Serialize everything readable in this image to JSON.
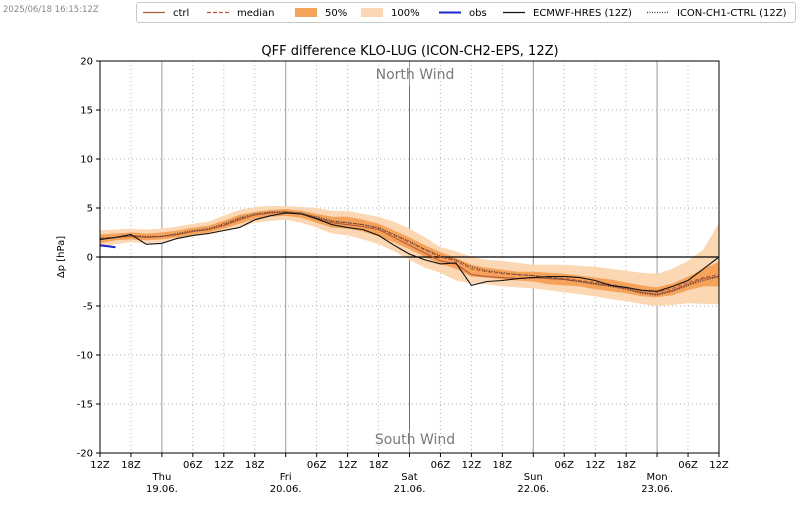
{
  "timestamp": "2025/06/18 16:15:12Z",
  "legend": [
    {
      "label": "ctrl",
      "kind": "line",
      "color": "#b15a3c",
      "dash": ""
    },
    {
      "label": "median",
      "kind": "line",
      "color": "#b15a3c",
      "dash": "4,2"
    },
    {
      "label": "50%",
      "kind": "band",
      "color": "#f5a25a"
    },
    {
      "label": "100%",
      "kind": "band",
      "color": "#fbd7b3"
    },
    {
      "label": "obs",
      "kind": "line",
      "color": "#1a25c8",
      "dash": "",
      "width": 2
    },
    {
      "label": "ECMWF-HRES (12Z)",
      "kind": "line",
      "color": "#111111",
      "dash": ""
    },
    {
      "label": "ICON-CH1-CTRL (12Z)",
      "kind": "line",
      "color": "#333333",
      "dash": "1,1.5"
    }
  ],
  "chart_data": {
    "type": "line",
    "title": "QFF difference KLO-LUG (ICON-CH2-EPS, 12Z)",
    "ylabel": "Δp [hPa]",
    "ylim": [
      -20,
      20
    ],
    "yticks": [
      -20,
      -15,
      -10,
      -5,
      0,
      5,
      10,
      15,
      20
    ],
    "xlim_hours": [
      0,
      120
    ],
    "annotations": {
      "top": "North Wind",
      "bottom": "South Wind"
    },
    "x_tick_labels": [
      {
        "h": 0,
        "label": "12Z"
      },
      {
        "h": 6,
        "label": "18Z"
      },
      {
        "h": 18,
        "label": "06Z"
      },
      {
        "h": 24,
        "label": "12Z"
      },
      {
        "h": 30,
        "label": "18Z"
      },
      {
        "h": 42,
        "label": "06Z"
      },
      {
        "h": 48,
        "label": "12Z"
      },
      {
        "h": 54,
        "label": "18Z"
      },
      {
        "h": 66,
        "label": "06Z"
      },
      {
        "h": 72,
        "label": "12Z"
      },
      {
        "h": 78,
        "label": "18Z"
      },
      {
        "h": 90,
        "label": "06Z"
      },
      {
        "h": 96,
        "label": "12Z"
      },
      {
        "h": 102,
        "label": "18Z"
      },
      {
        "h": 114,
        "label": "06Z"
      },
      {
        "h": 120,
        "label": "12Z"
      }
    ],
    "day_labels": [
      {
        "h": 12,
        "day": "Thu",
        "date": "19.06."
      },
      {
        "h": 36,
        "day": "Fri",
        "date": "20.06."
      },
      {
        "h": 60,
        "day": "Sat",
        "date": "21.06."
      },
      {
        "h": 84,
        "day": "Sun",
        "date": "22.06."
      },
      {
        "h": 108,
        "day": "Mon",
        "date": "23.06."
      }
    ],
    "x_hours": [
      0,
      3,
      6,
      9,
      12,
      15,
      18,
      21,
      24,
      27,
      30,
      33,
      36,
      39,
      42,
      45,
      48,
      51,
      54,
      57,
      60,
      63,
      66,
      69,
      72,
      75,
      78,
      81,
      84,
      87,
      90,
      93,
      96,
      99,
      102,
      105,
      108,
      111,
      114,
      117,
      120
    ],
    "series": [
      {
        "name": "ctrl",
        "y": [
          1.8,
          2.0,
          2.1,
          2.0,
          2.1,
          2.3,
          2.6,
          2.8,
          3.2,
          3.8,
          4.3,
          4.5,
          4.6,
          4.5,
          4.0,
          3.5,
          3.3,
          3.1,
          2.8,
          2.0,
          1.2,
          0.4,
          -0.4,
          -0.7,
          -1.8,
          -2.0,
          -2.1,
          -2.2,
          -2.1,
          -2.2,
          -2.3,
          -2.5,
          -2.7,
          -2.9,
          -3.2,
          -3.6,
          -3.8,
          -3.4,
          -2.8,
          -2.2,
          -2.0
        ]
      },
      {
        "name": "median",
        "y": [
          1.9,
          2.0,
          2.2,
          2.0,
          2.1,
          2.3,
          2.6,
          2.8,
          3.3,
          3.9,
          4.3,
          4.5,
          4.6,
          4.4,
          4.0,
          3.6,
          3.5,
          3.3,
          2.9,
          2.2,
          1.5,
          0.7,
          0.0,
          -0.4,
          -1.2,
          -1.5,
          -1.7,
          -1.8,
          -1.9,
          -2.1,
          -2.2,
          -2.4,
          -2.6,
          -2.8,
          -3.1,
          -3.4,
          -3.6,
          -3.2,
          -2.6,
          -2.1,
          -1.8
        ]
      },
      {
        "name": "obs",
        "y": [
          1.2,
          1.0,
          null,
          null,
          null,
          null,
          null,
          null,
          null,
          null,
          null,
          null,
          null,
          null,
          null,
          null,
          null,
          null,
          null,
          null,
          null,
          null,
          null,
          null,
          null,
          null,
          null,
          null,
          null,
          null,
          null,
          null,
          null,
          null,
          null,
          null,
          null,
          null,
          null,
          null,
          null
        ]
      },
      {
        "name": "ECMWF-HRES (12Z)",
        "y": [
          1.8,
          2.0,
          2.3,
          1.3,
          1.4,
          1.9,
          2.2,
          2.4,
          2.7,
          3.0,
          3.8,
          4.2,
          4.5,
          4.4,
          3.9,
          3.3,
          3.0,
          2.8,
          2.2,
          1.2,
          0.3,
          -0.3,
          -0.7,
          -0.6,
          -2.9,
          -2.5,
          -2.4,
          -2.2,
          -2.1,
          -2.0,
          -2.0,
          -2.1,
          -2.4,
          -2.9,
          -3.1,
          -3.4,
          -3.5,
          -3.0,
          -2.4,
          -1.2,
          0.0
        ]
      },
      {
        "name": "ICON-CH1-CTRL (12Z)",
        "y": [
          1.9,
          2.0,
          2.2,
          2.1,
          2.1,
          2.4,
          2.7,
          2.9,
          3.4,
          4.0,
          4.4,
          4.6,
          4.6,
          4.4,
          4.1,
          3.7,
          3.5,
          3.3,
          3.0,
          2.3,
          1.6,
          0.8,
          0.1,
          -0.3,
          -1.0,
          -1.4,
          -1.6,
          -1.8,
          -1.9,
          -2.1,
          -2.3,
          -2.5,
          -2.8,
          -3.0,
          -3.3,
          -3.7,
          -3.9,
          -3.5,
          -2.9,
          -2.4,
          -2.0
        ]
      }
    ],
    "band_50": {
      "low": [
        1.4,
        1.7,
        1.8,
        1.7,
        1.8,
        2.0,
        2.3,
        2.5,
        2.9,
        3.4,
        3.9,
        4.1,
        4.2,
        4.0,
        3.5,
        3.0,
        2.9,
        2.6,
        2.1,
        1.5,
        0.8,
        0.0,
        -0.7,
        -1.2,
        -2.0,
        -2.1,
        -2.3,
        -2.4,
        -2.5,
        -2.8,
        -2.9,
        -3.0,
        -3.3,
        -3.5,
        -3.7,
        -4.0,
        -4.1,
        -3.9,
        -3.4,
        -3.0,
        -3.0
      ]
    },
    "band_50_high": [
      2.3,
      2.4,
      2.5,
      2.4,
      2.5,
      2.7,
      3.0,
      3.2,
      3.7,
      4.3,
      4.6,
      4.8,
      4.9,
      4.7,
      4.4,
      4.1,
      4.1,
      3.8,
      3.4,
      2.7,
      2.0,
      1.2,
      0.5,
      -0.1,
      -0.8,
      -1.1,
      -1.3,
      -1.5,
      -1.5,
      -1.6,
      -1.7,
      -1.9,
      -2.1,
      -2.3,
      -2.6,
      -2.9,
      -3.1,
      -2.7,
      -2.0,
      -1.2,
      -0.5
    ],
    "band_100_low": [
      1.0,
      1.3,
      1.5,
      1.4,
      1.5,
      1.8,
      2.1,
      2.3,
      2.6,
      3.0,
      3.5,
      3.7,
      3.8,
      3.5,
      3.0,
      2.4,
      2.2,
      1.8,
      1.3,
      0.6,
      -0.3,
      -1.1,
      -1.6,
      -2.4,
      -2.7,
      -2.8,
      -3.0,
      -3.1,
      -3.2,
      -3.4,
      -3.6,
      -3.8,
      -4.0,
      -4.3,
      -4.5,
      -4.8,
      -5.0,
      -4.9,
      -4.7,
      -4.8,
      -4.8
    ],
    "band_100_high": [
      2.7,
      2.8,
      2.9,
      2.8,
      2.9,
      3.1,
      3.4,
      3.6,
      4.2,
      4.8,
      5.1,
      5.2,
      5.2,
      5.1,
      5.0,
      4.7,
      4.7,
      4.4,
      4.1,
      3.6,
      2.9,
      2.0,
      1.0,
      0.6,
      0.0,
      -0.3,
      -0.4,
      -0.6,
      -0.8,
      -0.8,
      -0.8,
      -0.9,
      -1.0,
      -1.2,
      -1.4,
      -1.6,
      -1.7,
      -1.2,
      -0.4,
      0.8,
      3.5
    ]
  }
}
